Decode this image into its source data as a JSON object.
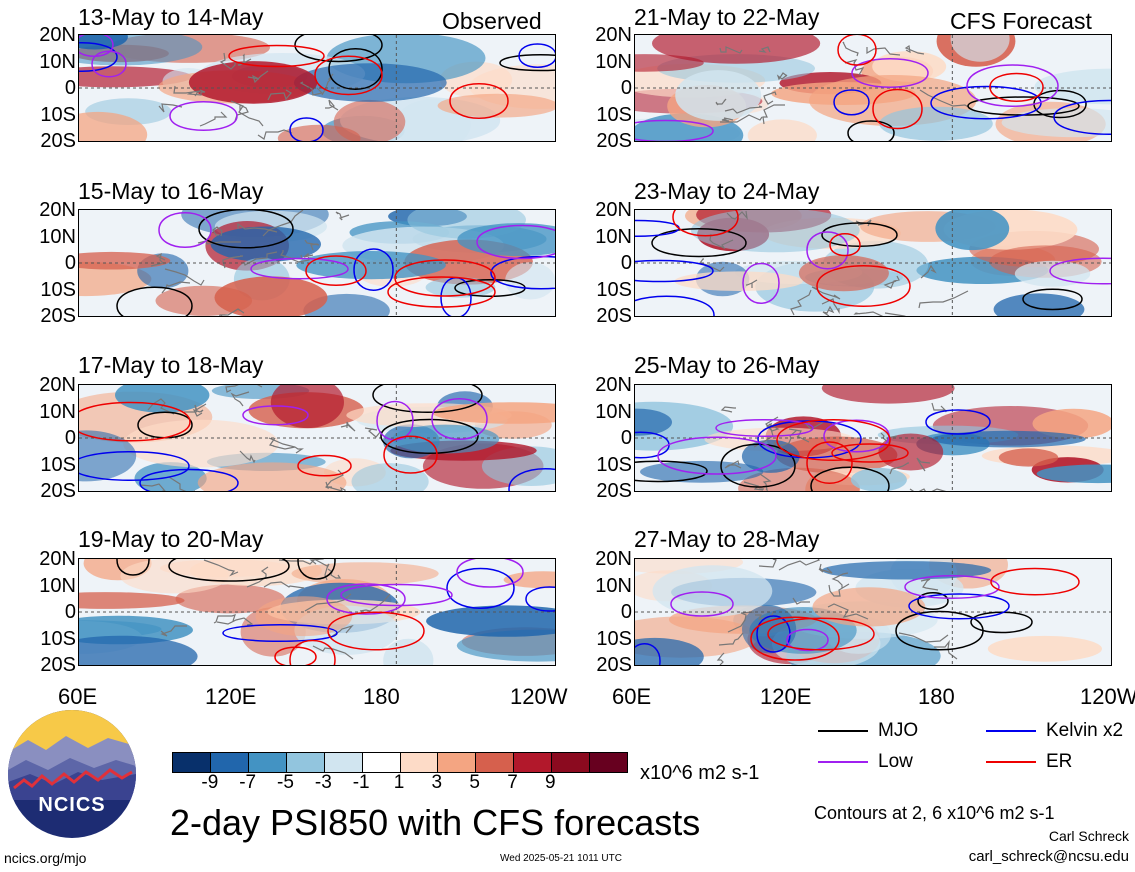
{
  "panels": [
    {
      "title": "13-May to 14-May",
      "tag": "Observed"
    },
    {
      "title": "15-May to 16-May",
      "tag": ""
    },
    {
      "title": "17-May to 18-May",
      "tag": ""
    },
    {
      "title": "19-May to 20-May",
      "tag": ""
    },
    {
      "title": "21-May to 22-May",
      "tag": "CFS Forecast"
    },
    {
      "title": "23-May to 24-May",
      "tag": ""
    },
    {
      "title": "25-May to 26-May",
      "tag": ""
    },
    {
      "title": "27-May to 28-May",
      "tag": ""
    }
  ],
  "lat_labels": [
    "20N",
    "10N",
    "0",
    "10S",
    "20S"
  ],
  "lon_labels": [
    "60E",
    "120E",
    "180",
    "120W"
  ],
  "colorbar": {
    "ticks": [
      "-9",
      "-7",
      "-5",
      "-3",
      "-1",
      "1",
      "3",
      "5",
      "7",
      "9"
    ],
    "colors": [
      "#08306b",
      "#2166ac",
      "#4393c3",
      "#92c5de",
      "#d1e5f0",
      "#ffffff",
      "#fddbc7",
      "#f4a582",
      "#d6604d",
      "#b2182b",
      "#8b0a1f",
      "#67001f"
    ],
    "units": "x10^6 m2 s-1"
  },
  "legend": [
    {
      "label": "MJO",
      "color": "#000000"
    },
    {
      "label": "Kelvin x2",
      "color": "#0000ee"
    },
    {
      "label": "Low",
      "color": "#a020f0"
    },
    {
      "label": "ER",
      "color": "#ee0000"
    }
  ],
  "contour_note": "Contours at 2, 6 x10^6 m2 s-1",
  "main_title": "2-day PSI850 with CFS forecasts",
  "author": "Carl Schreck",
  "email": "carl_schreck@ncsu.edu",
  "url": "ncics.org/mjo",
  "timestamp": "Wed 2025-05-21 1011 UTC",
  "logo_text": "NCICS",
  "chart_data": {
    "type": "heatmap",
    "title": "2-day PSI850 with CFS forecasts",
    "x_range": [
      "60E",
      "120W"
    ],
    "y_range": [
      "20S",
      "20N"
    ],
    "x_ticks": [
      "60E",
      "120E",
      "180",
      "120W"
    ],
    "y_ticks": [
      "20N",
      "10N",
      "0",
      "10S",
      "20S"
    ],
    "color_levels": [
      -9,
      -7,
      -5,
      -3,
      -1,
      1,
      3,
      5,
      7,
      9
    ],
    "contour_levels": [
      2,
      6
    ],
    "series": [
      {
        "name": "MJO",
        "color": "#000000"
      },
      {
        "name": "Kelvin x2",
        "color": "#0000ee"
      },
      {
        "name": "Low",
        "color": "#a020f0"
      },
      {
        "name": "ER",
        "color": "#ee0000"
      }
    ]
  }
}
